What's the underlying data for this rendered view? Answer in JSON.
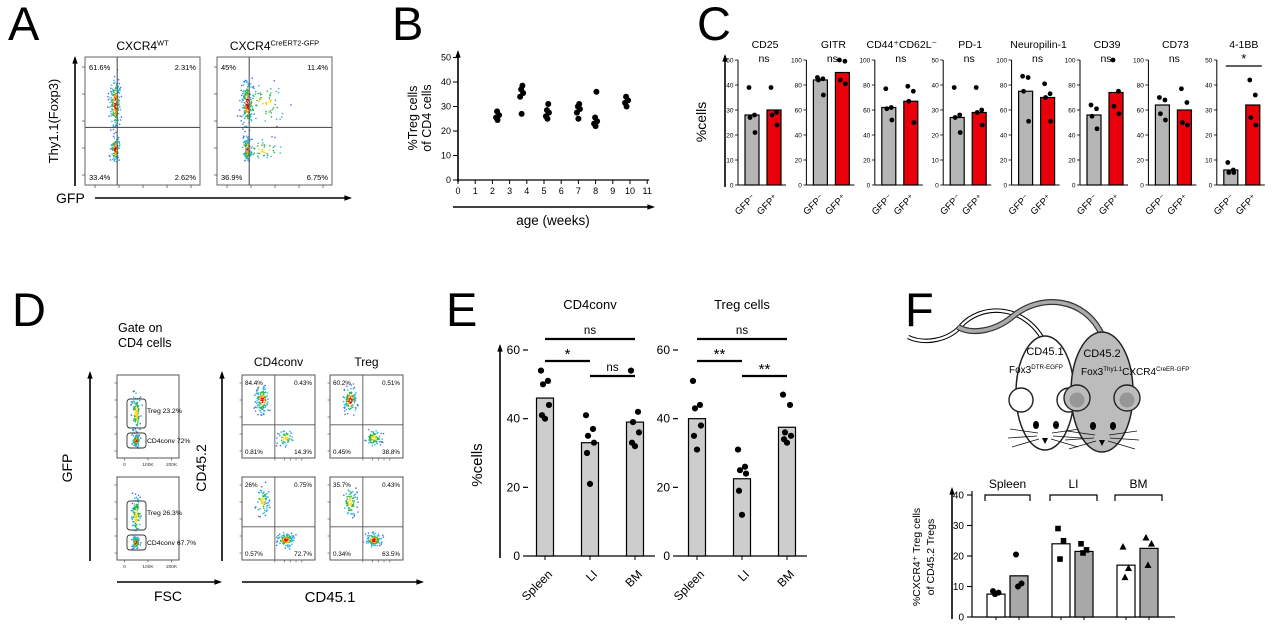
{
  "colors": {
    "red": "#e8000b",
    "gray_bar": "#b5b5b5",
    "light_gray_bar": "#cdcdcd",
    "dark_gray_bar": "#a8a8a8",
    "mouse_gray": "#bcbcbc"
  },
  "panels": {
    "A": {
      "label": "A",
      "y_axis": "Thy1.1(Foxp3)",
      "x_axis": "GFP",
      "plots": [
        {
          "title": [
            {
              "t": "CXCR4"
            },
            {
              "t": "WT",
              "sup": true
            }
          ],
          "quadrants": {
            "tl": "61.6%",
            "tr": "2.31%",
            "bl": "33.4%",
            "br": "2.62%"
          }
        },
        {
          "title": [
            {
              "t": "CXCR4"
            },
            {
              "t": "CreERT2-GFP",
              "sup": true
            }
          ],
          "quadrants": {
            "tl": "45%",
            "tr": "11.4%",
            "bl": "36.9%",
            "br": "6.75%"
          }
        }
      ]
    },
    "B": {
      "label": "B"
    },
    "C": {
      "label": "C"
    },
    "D": {
      "label": "D",
      "gate_title": [
        "Gate on",
        "CD4 cells"
      ],
      "left": {
        "y_axis": "GFP",
        "x_axis": "FSC",
        "x_ticks": [
          "0",
          "100K",
          "200K"
        ],
        "plots": [
          {
            "gates": [
              "Treg 23.2%",
              "CD4conv 72%"
            ]
          },
          {
            "gates": [
              "Treg 26.3%",
              "CD4conv 67.7%"
            ]
          }
        ]
      },
      "right": {
        "y_axis": "CD45.2",
        "x_axis": "CD45.1",
        "col_titles": [
          "CD4conv",
          "Treg"
        ],
        "plots": [
          [
            {
              "tl": "84.4%",
              "tr": "0.43%",
              "bl": "0.81%",
              "br": "14.3%"
            },
            {
              "tl": "60.2%",
              "tr": "0.51%",
              "bl": "0.45%",
              "br": "38.8%"
            }
          ],
          [
            {
              "tl": "26%",
              "tr": "0.75%",
              "bl": "0.57%",
              "br": "72.7%"
            },
            {
              "tl": "35.7%",
              "tr": "0.43%",
              "bl": "0.34%",
              "br": "63.5%"
            }
          ]
        ]
      }
    },
    "E": {
      "label": "E"
    },
    "F": {
      "label": "F",
      "mice": {
        "left_mouse": {
          "line1": "CD45.1",
          "line2": [
            {
              "t": "Fox3"
            },
            {
              "t": "DTR-EGFP",
              "sup": true
            }
          ]
        },
        "right_mouse": {
          "line1": "CD45.2",
          "line2": [
            {
              "t": "Fox3"
            },
            {
              "t": "Thy1.1",
              "sup": true
            },
            {
              "t": "CXCR4"
            },
            {
              "t": "CreER-GFP",
              "sup": true
            }
          ]
        }
      }
    }
  },
  "chart_data": [
    {
      "id": "B",
      "type": "scatter",
      "xlabel": "age (weeks)",
      "ylabel": [
        "%Treg cells",
        "of CD4 cells"
      ],
      "xlim": [
        0,
        11
      ],
      "ylim": [
        0,
        50
      ],
      "xticks": [
        0,
        1,
        2,
        3,
        4,
        5,
        6,
        7,
        8,
        9,
        10,
        11
      ],
      "yticks": [
        0,
        10,
        20,
        30,
        40,
        50
      ],
      "groups": [
        {
          "x": 2.3,
          "ys": [
            24.5,
            25.5,
            26.5,
            28
          ]
        },
        {
          "x": 3.7,
          "ys": [
            27,
            34,
            35.5,
            37,
            38.5
          ]
        },
        {
          "x": 5.2,
          "ys": [
            25,
            26,
            27.5,
            28.5,
            31
          ]
        },
        {
          "x": 7,
          "ys": [
            25,
            27.5,
            29,
            30,
            31
          ]
        },
        {
          "x": 8,
          "ys": [
            22,
            23,
            24,
            25.5,
            36
          ]
        },
        {
          "x": 9.8,
          "ys": [
            30,
            31.5,
            32.5,
            34
          ]
        }
      ]
    },
    {
      "id": "C",
      "type": "bar",
      "ylabel": "%cells",
      "categories": [
        "GFP⁻",
        "GFP⁺"
      ],
      "charts": [
        {
          "title": "CD25",
          "sig": "ns",
          "ymax": 50,
          "ystep": 10,
          "bars": [
            28,
            30
          ],
          "points": [
            [
              39,
              28,
              27,
              21
            ],
            [
              39,
              29,
              28,
              24
            ]
          ]
        },
        {
          "title": "GITR",
          "sig": "ns",
          "ymax": 100,
          "ystep": 20,
          "bars": [
            84,
            90
          ],
          "points": [
            [
              86,
              85,
              84,
              72
            ],
            [
              100,
              99,
              84,
              81
            ]
          ]
        },
        {
          "title": "CD44⁺CD62L⁻",
          "sig": "ns",
          "ymax": 100,
          "ystep": 20,
          "bars": [
            62,
            67
          ],
          "points": [
            [
              77,
              62,
              61,
              52
            ],
            [
              79,
              75,
              67,
              50
            ]
          ]
        },
        {
          "title": "PD-1",
          "sig": "ns",
          "ymax": 50,
          "ystep": 10,
          "bars": [
            27,
            29
          ],
          "points": [
            [
              39,
              28,
              27,
              21
            ],
            [
              39,
              30,
              29,
              24
            ]
          ]
        },
        {
          "title": "Neuropilin-1",
          "sig": "ns",
          "ymax": 100,
          "ystep": 20,
          "bars": [
            75,
            70
          ],
          "points": [
            [
              87,
              86,
              75,
              51
            ],
            [
              81,
              73,
              70,
              51
            ]
          ]
        },
        {
          "title": "CD39",
          "sig": "ns",
          "ymax": 100,
          "ystep": 20,
          "bars": [
            56,
            74
          ],
          "points": [
            [
              64,
              61,
              55,
              45
            ],
            [
              100,
              75,
              63,
              57
            ]
          ]
        },
        {
          "title": "CD73",
          "sig": "ns",
          "ymax": 100,
          "ystep": 20,
          "bars": [
            64,
            60
          ],
          "points": [
            [
              70,
              68,
              57,
              52
            ],
            [
              77,
              66,
              50,
              48
            ]
          ]
        },
        {
          "title": "4-1BB",
          "sig": "*",
          "ymax": 50,
          "ystep": 10,
          "bars": [
            6,
            32
          ],
          "points": [
            [
              9,
              6,
              5,
              5
            ],
            [
              42,
              36,
              27,
              24
            ]
          ]
        }
      ]
    },
    {
      "id": "E",
      "type": "bar",
      "ylabel": "%cells",
      "ymax": 60,
      "yticks": [
        0,
        20,
        40,
        60
      ],
      "categories": [
        "Spleen",
        "LI",
        "BM"
      ],
      "charts": [
        {
          "title": "CD4conv",
          "bars": [
            46,
            33,
            39
          ],
          "points": [
            [
              54,
              51,
              50,
              44,
              41,
              40
            ],
            [
              41,
              37,
              35,
              33,
              30,
              21
            ],
            [
              54,
              42,
              39,
              36,
              33,
              32
            ]
          ],
          "sig": [
            {
              "from": 0,
              "to": 2,
              "label": "ns"
            },
            {
              "from": 0,
              "to": 1,
              "label": "*"
            },
            {
              "from": 1,
              "to": 2,
              "label": "ns"
            }
          ]
        },
        {
          "title": "Treg cells",
          "bars": [
            40,
            22.5,
            37.5
          ],
          "points": [
            [
              51,
              44,
              43,
              38,
              35,
              31
            ],
            [
              31,
              26,
              25,
              24,
              19,
              12
            ],
            [
              47,
              44,
              36,
              35,
              34,
              33
            ]
          ],
          "sig": [
            {
              "from": 0,
              "to": 2,
              "label": "ns"
            },
            {
              "from": 0,
              "to": 1,
              "label": "**"
            },
            {
              "from": 1,
              "to": 2,
              "label": "**"
            }
          ]
        }
      ]
    },
    {
      "id": "F",
      "type": "bar",
      "ylabel": [
        "%CXCR4⁺ Treg cells",
        "of CD45.2 Tregs"
      ],
      "ymax": 40,
      "yticks": [
        0,
        10,
        20,
        30,
        40
      ],
      "groups": [
        {
          "name": "Spleen",
          "marker": "circle",
          "bars": [
            {
              "fill": "white",
              "value": 7.5,
              "points": [
                8.5,
                8,
                7.5
              ]
            },
            {
              "fill": "gray",
              "value": 13.5,
              "points": [
                20.5,
                11,
                10
              ]
            }
          ]
        },
        {
          "name": "LI",
          "marker": "square",
          "bars": [
            {
              "fill": "white",
              "value": 24,
              "points": [
                29,
                25,
                19
              ]
            },
            {
              "fill": "gray",
              "value": 21.5,
              "points": [
                24,
                22,
                21
              ]
            }
          ]
        },
        {
          "name": "BM",
          "marker": "triangle",
          "bars": [
            {
              "fill": "white",
              "value": 17,
              "points": [
                23,
                16,
                13
              ]
            },
            {
              "fill": "gray",
              "value": 22.5,
              "points": [
                26,
                24,
                17
              ]
            }
          ]
        }
      ]
    }
  ]
}
